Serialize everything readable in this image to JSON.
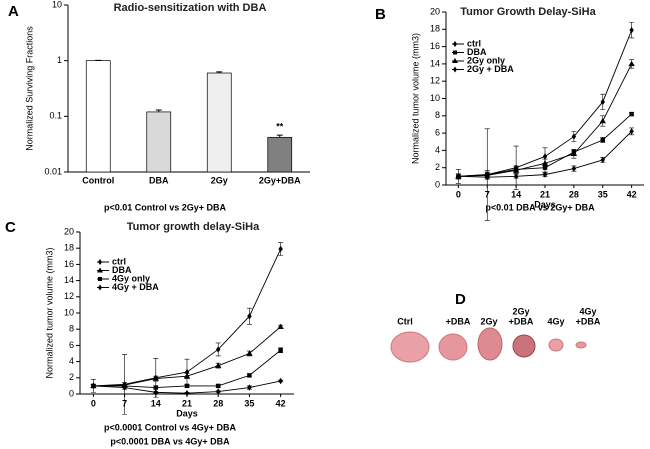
{
  "chart_data": [
    {
      "type": "bar",
      "panel_label": "A",
      "title": "Radio-sensitization with DBA",
      "y_label": "Normalized Surviving Fractions",
      "yscale": "log",
      "categories": [
        "Control",
        "DBA",
        "2Gy",
        "2Gy+DBA"
      ],
      "values": [
        1,
        0.12,
        0.6,
        0.042
      ],
      "errors": [
        0.01,
        0.01,
        0.03,
        0.004
      ],
      "colors": [
        "#ffffff",
        "#d9d9d9",
        "#efefef",
        "#808080"
      ],
      "ylim": [
        0.01,
        10
      ],
      "yticks": [
        0.01,
        0.1,
        1,
        10
      ],
      "annotations": [
        {
          "text": "**",
          "category": "2Gy+DBA"
        }
      ],
      "caption": [
        "p<0.01 Control vs 2Gy+ DBA"
      ]
    },
    {
      "type": "line",
      "panel_label": "B",
      "title": "Tumor Growth Delay-SiHa",
      "x_label": "Days",
      "y_label": "Normalized tumor volume (mm3)",
      "x": [
        0,
        7,
        14,
        21,
        28,
        35,
        42
      ],
      "xlim": [
        -3,
        45
      ],
      "xticks": [
        0,
        7,
        14,
        21,
        28,
        35,
        42
      ],
      "ylim": [
        0,
        20
      ],
      "yticks": [
        0,
        2,
        4,
        6,
        8,
        10,
        12,
        14,
        16,
        18,
        20
      ],
      "series": [
        {
          "name": "ctrl",
          "color": "#000000",
          "marker": "diamond",
          "values": [
            1.0,
            1.2,
            2.0,
            3.3,
            5.6,
            9.6,
            17.9
          ],
          "errors": [
            0.8,
            5.3,
            2.5,
            1.0,
            0.6,
            0.9,
            0.9
          ]
        },
        {
          "name": "DBA",
          "color": "#000000",
          "marker": "square",
          "values": [
            1.0,
            1.2,
            1.8,
            2.0,
            3.8,
            5.2,
            8.2
          ],
          "errors": [
            0.3,
            0.5,
            0.4,
            0.5,
            0.3,
            0.3,
            0.2
          ]
        },
        {
          "name": "2Gy only",
          "color": "#000000",
          "marker": "triangle",
          "values": [
            1.0,
            1.1,
            1.7,
            2.5,
            3.6,
            7.4,
            14.0
          ],
          "errors": [
            0.3,
            0.4,
            0.4,
            0.5,
            0.5,
            0.6,
            0.5
          ]
        },
        {
          "name": "2Gy + DBA",
          "color": "#000000",
          "marker": "diamond",
          "values": [
            1.0,
            0.9,
            1.0,
            1.2,
            1.9,
            2.9,
            6.2
          ],
          "errors": [
            0.2,
            0.2,
            0.2,
            0.2,
            0.3,
            0.3,
            0.4
          ]
        }
      ],
      "caption": [
        "p<0.01 DBA vs 2Gy+ DBA"
      ]
    },
    {
      "type": "line",
      "panel_label": "C",
      "title": "Tumor growth delay-SiHa",
      "x_label": "Days",
      "y_label": "Normalized tumor volume (mm3)",
      "x": [
        0,
        7,
        14,
        21,
        28,
        35,
        42
      ],
      "xlim": [
        -3,
        45
      ],
      "xticks": [
        0,
        7,
        14,
        21,
        28,
        35,
        42
      ],
      "ylim": [
        0,
        20
      ],
      "yticks": [
        0,
        2,
        4,
        6,
        8,
        10,
        12,
        14,
        16,
        18,
        20
      ],
      "series": [
        {
          "name": "ctrl",
          "color": "#000000",
          "marker": "diamond",
          "values": [
            1.0,
            1.2,
            2.0,
            2.7,
            5.5,
            9.6,
            17.9
          ],
          "errors": [
            0.8,
            3.7,
            2.4,
            1.6,
            0.8,
            1.0,
            0.8
          ]
        },
        {
          "name": "DBA",
          "color": "#000000",
          "marker": "triangle",
          "values": [
            1.0,
            1.1,
            1.9,
            2.2,
            3.5,
            5.0,
            8.3
          ],
          "errors": [
            0.2,
            0.3,
            0.3,
            0.3,
            0.3,
            0.3,
            0.2
          ]
        },
        {
          "name": "4Gy only",
          "color": "#000000",
          "marker": "square",
          "values": [
            1.0,
            1.0,
            0.8,
            1.0,
            1.0,
            2.3,
            5.4
          ],
          "errors": [
            0.2,
            0.2,
            0.2,
            0.2,
            0.2,
            0.2,
            0.3
          ]
        },
        {
          "name": "4Gy + DBA",
          "color": "#000000",
          "marker": "diamond",
          "values": [
            1.0,
            0.8,
            0.2,
            0.1,
            0.3,
            0.8,
            1.6
          ],
          "errors": [
            0.2,
            0.2,
            0.1,
            0.1,
            0.1,
            0.2,
            0.1
          ]
        }
      ],
      "caption": [
        "p<0.0001 Control vs 4Gy+ DBA",
        "p<0.0001 DBA vs 4Gy+ DBA"
      ]
    }
  ],
  "photo": {
    "panel_label": "D",
    "labels": [
      [
        "Ctrl"
      ],
      [
        "+DBA"
      ],
      [
        "2Gy"
      ],
      [
        "2Gy",
        "+DBA"
      ],
      [
        "4Gy"
      ],
      [
        "4Gy",
        "+DBA"
      ]
    ]
  }
}
